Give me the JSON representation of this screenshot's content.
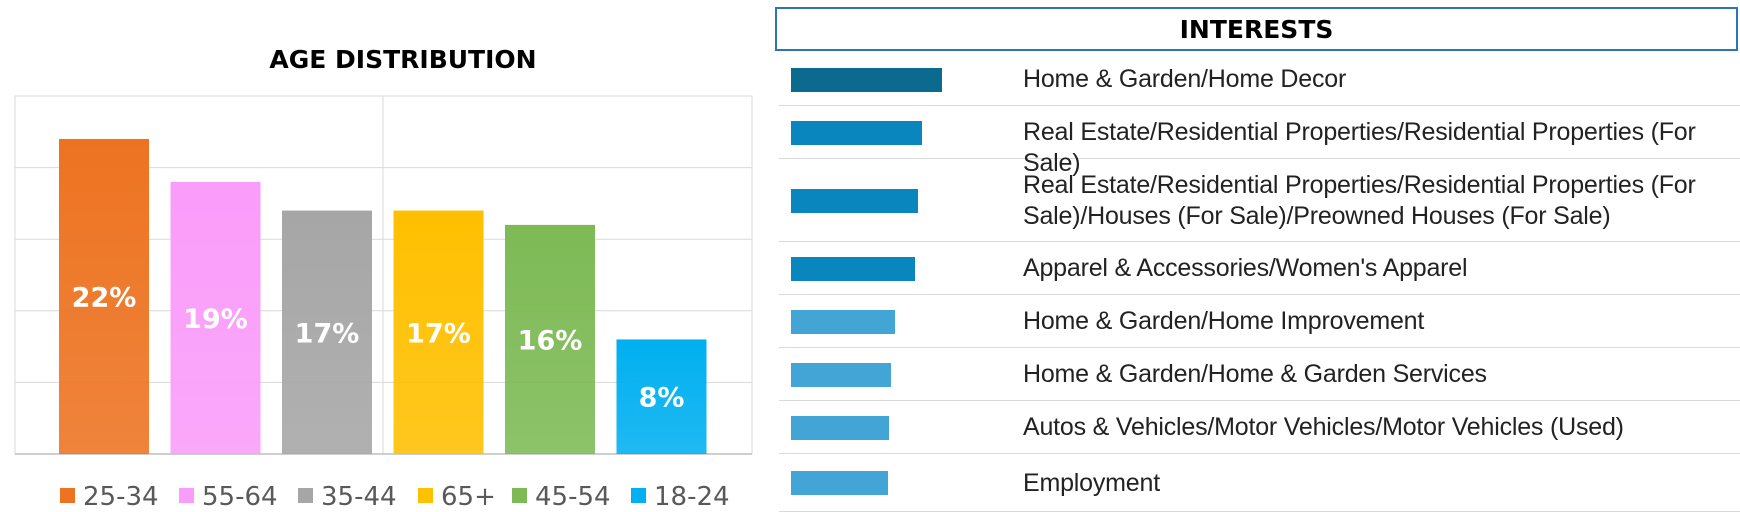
{
  "chart_data": [
    {
      "type": "bar",
      "title": "AGE DISTRIBUTION",
      "categories": [
        "25-34",
        "55-64",
        "35-44",
        "65+",
        "45-54",
        "18-24"
      ],
      "values": [
        22,
        19,
        17,
        17,
        16,
        8
      ],
      "value_labels": [
        "22%",
        "19%",
        "17%",
        "17%",
        "16%",
        "8%"
      ],
      "colors": [
        "#ed7321",
        "#fa9cfa",
        "#a6a6a6",
        "#ffc000",
        "#7dba55",
        "#00b0f0"
      ],
      "ylim": [
        0,
        25
      ],
      "grid": true,
      "legend": "bottom",
      "legend_entries": [
        "25-34",
        "55-64",
        "35-44",
        "65+",
        "45-54",
        "18-24"
      ]
    },
    {
      "type": "bar",
      "orientation": "horizontal",
      "title": "INTERESTS",
      "categories": [
        "Home & Garden/Home Decor",
        "Real Estate/Residential Properties/Residential Properties (For Sale)",
        "Real Estate/Residential Properties/Residential Properties (For Sale)/Houses (For Sale)/Preowned Houses (For Sale)",
        "Apparel & Accessories/Women's Apparel",
        "Home & Garden/Home Improvement",
        "Home & Garden/Home & Garden Services",
        "Autos & Vehicles/Motor Vehicles/Motor Vehicles (Used)",
        "Employment"
      ],
      "values": [
        1.0,
        0.87,
        0.84,
        0.82,
        0.69,
        0.66,
        0.65,
        0.64
      ],
      "colors": [
        "#0b6a8e",
        "#0a86bf",
        "#0a86bf",
        "#0a86bf",
        "#42a5d6",
        "#42a5d6",
        "#42a5d6",
        "#42a5d6"
      ]
    }
  ]
}
